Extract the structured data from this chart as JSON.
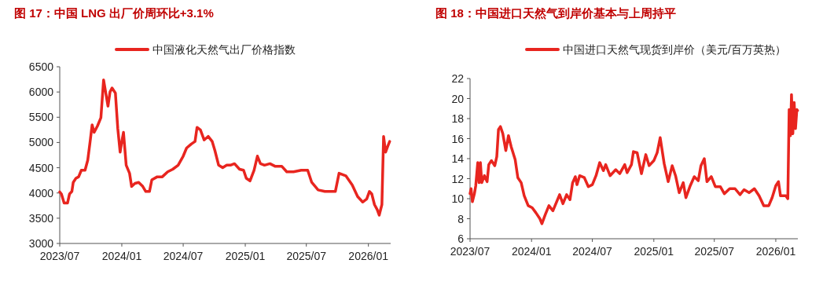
{
  "chart_data": [
    {
      "type": "line",
      "title": "图 17：中国 LNG 出厂价周环比+3.1%",
      "legend": "top",
      "xlim": [
        "2023-07-01",
        "2026-03-08"
      ],
      "xticks": [
        {
          "value": "2023-07-01",
          "label": "2023/07"
        },
        {
          "value": "2024-01-01",
          "label": "2024/01"
        },
        {
          "value": "2024-07-01",
          "label": "2024/07"
        },
        {
          "value": "2025-01-01",
          "label": "2025/01"
        },
        {
          "value": "2025-07-01",
          "label": "2025/07"
        },
        {
          "value": "2026-01-01",
          "label": "2026/01"
        }
      ],
      "ylim": [
        3000,
        6500
      ],
      "yticks": [
        3000,
        3500,
        4000,
        4500,
        5000,
        5500,
        6000,
        6500
      ],
      "x": [
        "2023-07-01",
        "2023-07-06",
        "2023-07-14",
        "2023-07-24",
        "2023-07-30",
        "2023-08-06",
        "2023-08-10",
        "2023-08-18",
        "2023-08-26",
        "2023-09-03",
        "2023-09-14",
        "2023-09-22",
        "2023-09-30",
        "2023-10-05",
        "2023-10-11",
        "2023-10-21",
        "2023-10-31",
        "2023-11-08",
        "2023-11-15",
        "2023-11-21",
        "2023-11-27",
        "2023-12-03",
        "2023-12-13",
        "2023-12-20",
        "2023-12-27",
        "2024-01-01",
        "2024-01-06",
        "2024-01-14",
        "2024-01-24",
        "2024-01-30",
        "2024-02-09",
        "2024-02-20",
        "2024-03-03",
        "2024-03-12",
        "2024-03-23",
        "2024-03-30",
        "2024-04-15",
        "2024-04-30",
        "2024-05-16",
        "2024-05-31",
        "2024-06-16",
        "2024-07-01",
        "2024-07-11",
        "2024-07-25",
        "2024-08-05",
        "2024-08-11",
        "2024-08-21",
        "2024-09-01",
        "2024-09-13",
        "2024-09-25",
        "2024-10-03",
        "2024-10-14",
        "2024-10-26",
        "2024-11-07",
        "2024-11-18",
        "2024-11-30",
        "2024-12-15",
        "2024-12-27",
        "2025-01-04",
        "2025-01-15",
        "2025-01-27",
        "2025-02-06",
        "2025-02-15",
        "2025-02-27",
        "2025-03-15",
        "2025-03-30",
        "2025-04-19",
        "2025-05-04",
        "2025-05-24",
        "2025-06-16",
        "2025-07-05",
        "2025-07-17",
        "2025-08-05",
        "2025-08-25",
        "2025-09-13",
        "2025-09-25",
        "2025-10-06",
        "2025-10-26",
        "2025-11-14",
        "2025-11-30",
        "2025-12-15",
        "2025-12-27",
        "2026-01-04",
        "2026-01-11",
        "2026-01-19",
        "2026-01-27",
        "2026-02-02",
        "2026-02-10",
        "2026-02-15",
        "2026-02-21",
        "2026-02-27",
        "2026-03-05"
      ],
      "series": [
        {
          "name": "中国液化天然气出厂价格指数",
          "color": "#e8251f",
          "values": [
            4020,
            3980,
            3800,
            3800,
            3980,
            4030,
            4210,
            4290,
            4320,
            4450,
            4450,
            4650,
            5070,
            5350,
            5200,
            5330,
            5490,
            6240,
            5960,
            5720,
            6000,
            6080,
            5980,
            5280,
            4810,
            5020,
            5200,
            4550,
            4390,
            4130,
            4190,
            4210,
            4130,
            4030,
            4030,
            4260,
            4320,
            4320,
            4420,
            4470,
            4550,
            4730,
            4890,
            4970,
            5020,
            5300,
            5250,
            5050,
            5120,
            5020,
            4840,
            4550,
            4500,
            4550,
            4550,
            4580,
            4470,
            4450,
            4290,
            4240,
            4450,
            4730,
            4580,
            4550,
            4580,
            4530,
            4530,
            4420,
            4420,
            4450,
            4450,
            4210,
            4060,
            4030,
            4030,
            4030,
            4390,
            4340,
            4160,
            3930,
            3820,
            3880,
            4030,
            3980,
            3770,
            3670,
            3560,
            3770,
            5120,
            4810,
            4920,
            5020
          ]
        }
      ]
    },
    {
      "type": "line",
      "title": "图 18：中国进口天然气到岸价基本与上周持平",
      "legend": "top",
      "xlim": [
        "2023-07-01",
        "2026-03-08"
      ],
      "xticks": [
        {
          "value": "2023-07-01",
          "label": "2023/07"
        },
        {
          "value": "2024-01-01",
          "label": "2024/01"
        },
        {
          "value": "2024-07-01",
          "label": "2024/07"
        },
        {
          "value": "2025-01-01",
          "label": "2025/01"
        },
        {
          "value": "2025-07-01",
          "label": "2025/07"
        },
        {
          "value": "2026-01-01",
          "label": "2026/01"
        }
      ],
      "ylim": [
        6,
        22
      ],
      "yticks": [
        6,
        8,
        10,
        12,
        14,
        16,
        18,
        20,
        22
      ],
      "x": [
        "2023-07-01",
        "2023-07-04",
        "2023-07-08",
        "2023-07-14",
        "2023-07-18",
        "2023-07-24",
        "2023-07-28",
        "2023-08-01",
        "2023-08-05",
        "2023-08-13",
        "2023-08-21",
        "2023-08-26",
        "2023-09-03",
        "2023-09-13",
        "2023-09-19",
        "2023-09-24",
        "2023-09-30",
        "2023-10-07",
        "2023-10-16",
        "2023-10-24",
        "2023-11-01",
        "2023-11-13",
        "2023-11-21",
        "2023-12-01",
        "2023-12-10",
        "2023-12-22",
        "2024-01-03",
        "2024-01-14",
        "2024-01-26",
        "2024-02-01",
        "2024-02-11",
        "2024-02-22",
        "2024-03-05",
        "2024-03-25",
        "2024-04-04",
        "2024-04-15",
        "2024-04-25",
        "2024-05-03",
        "2024-05-11",
        "2024-05-16",
        "2024-05-24",
        "2024-06-07",
        "2024-06-19",
        "2024-07-01",
        "2024-07-12",
        "2024-07-23",
        "2024-08-03",
        "2024-08-10",
        "2024-08-23",
        "2024-09-09",
        "2024-09-21",
        "2024-10-06",
        "2024-10-13",
        "2024-10-26",
        "2024-11-01",
        "2024-11-12",
        "2024-11-25",
        "2024-12-08",
        "2024-12-18",
        "2025-01-01",
        "2025-01-11",
        "2025-01-20",
        "2025-02-01",
        "2025-02-13",
        "2025-02-25",
        "2025-03-07",
        "2025-03-18",
        "2025-03-30",
        "2025-04-07",
        "2025-04-20",
        "2025-05-02",
        "2025-05-14",
        "2025-05-22",
        "2025-06-01",
        "2025-06-09",
        "2025-06-22",
        "2025-07-04",
        "2025-07-19",
        "2025-07-31",
        "2025-08-16",
        "2025-09-01",
        "2025-09-16",
        "2025-09-28",
        "2025-10-13",
        "2025-10-29",
        "2025-11-12",
        "2025-11-26",
        "2025-12-11",
        "2025-12-21",
        "2026-01-01",
        "2026-01-09",
        "2026-01-15",
        "2026-01-31",
        "2026-02-06",
        "2026-02-10",
        "2026-02-14",
        "2026-02-17",
        "2026-02-21",
        "2026-02-25",
        "2026-03-01",
        "2026-03-05",
        "2026-03-07"
      ],
      "series": [
        {
          "name": "中国进口天然气现货到岸价（美元/百万英热）",
          "color": "#e8251f",
          "values": [
            10.5,
            11.0,
            9.7,
            10.5,
            11.3,
            13.6,
            11.6,
            13.6,
            11.6,
            12.3,
            11.7,
            13.4,
            13.8,
            13.3,
            14.2,
            16.9,
            17.2,
            16.5,
            14.8,
            16.3,
            15.2,
            13.9,
            12.1,
            11.6,
            10.3,
            9.3,
            9.1,
            8.6,
            8.0,
            7.5,
            8.4,
            9.3,
            8.8,
            10.4,
            9.5,
            10.4,
            9.9,
            11.6,
            12.2,
            11.4,
            12.3,
            12.1,
            11.2,
            11.4,
            12.3,
            13.6,
            12.8,
            13.4,
            12.3,
            12.9,
            12.5,
            13.4,
            12.6,
            13.4,
            14.7,
            14.6,
            12.5,
            14.4,
            13.3,
            13.8,
            14.6,
            16.1,
            13.5,
            11.7,
            13.3,
            12.3,
            10.6,
            11.6,
            10.1,
            11.3,
            12.2,
            11.8,
            13.3,
            14.0,
            11.7,
            12.2,
            11.2,
            11.2,
            10.5,
            11.0,
            11.0,
            10.4,
            10.9,
            10.6,
            11.0,
            10.3,
            9.3,
            9.3,
            10.1,
            11.3,
            11.7,
            10.3,
            10.3,
            10.0,
            18.9,
            16.3,
            20.4,
            16.5,
            19.6,
            17.0,
            18.9,
            18.8
          ]
        }
      ]
    }
  ]
}
